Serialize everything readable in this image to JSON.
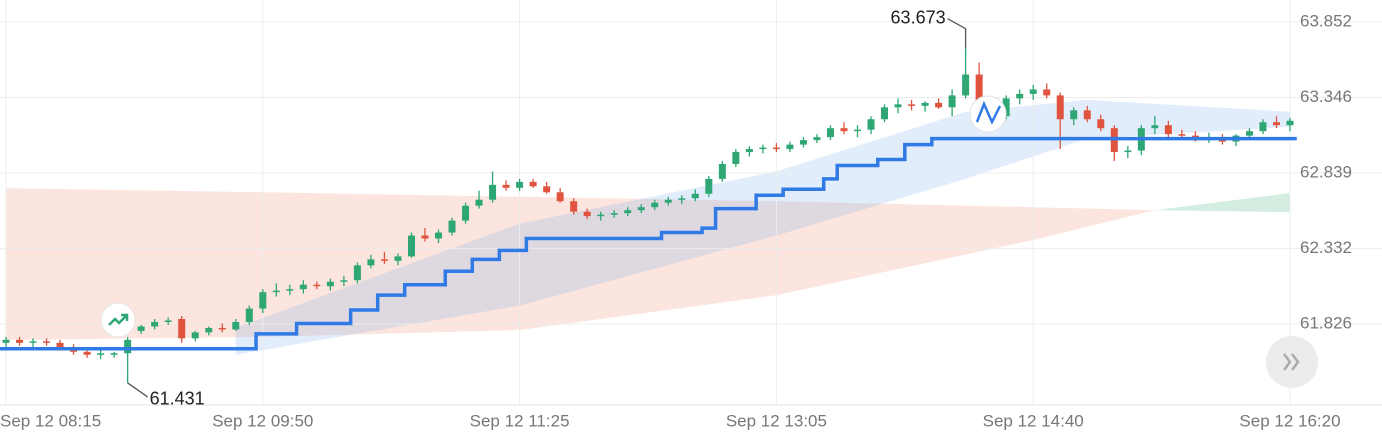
{
  "chart_data": {
    "type": "candlestick",
    "ylim": [
      61.283,
      64.0
    ],
    "yticks": [
      61.826,
      62.332,
      62.839,
      63.346,
      63.852
    ],
    "xlim": [
      0,
      95
    ],
    "xticks": [
      {
        "value": 0,
        "label": "Sep 12 08:15"
      },
      {
        "value": 19,
        "label": "Sep 12 09:50"
      },
      {
        "value": 38,
        "label": "Sep 12 11:25"
      },
      {
        "value": 57,
        "label": "Sep 12 13:05"
      },
      {
        "value": 76,
        "label": "Sep 12 14:40"
      },
      {
        "value": 95,
        "label": "Sep 12 16:20"
      }
    ],
    "grid": true,
    "up_color": "#2ea774",
    "down_color": "#e0543f",
    "candles": [
      [
        61.7,
        61.74,
        61.66,
        61.72
      ],
      [
        61.72,
        61.74,
        61.68,
        61.7
      ],
      [
        61.7,
        61.73,
        61.67,
        61.71
      ],
      [
        61.71,
        61.73,
        61.68,
        61.7
      ],
      [
        61.7,
        61.72,
        61.65,
        61.66
      ],
      [
        61.66,
        61.69,
        61.62,
        61.64
      ],
      [
        61.64,
        61.66,
        61.6,
        61.62
      ],
      [
        61.62,
        61.65,
        61.59,
        61.63
      ],
      [
        61.62,
        61.64,
        61.6,
        61.63
      ],
      [
        61.63,
        61.74,
        61.431,
        61.72
      ],
      [
        61.78,
        61.82,
        61.76,
        61.81
      ],
      [
        61.81,
        61.86,
        61.79,
        61.84
      ],
      [
        61.84,
        61.87,
        61.82,
        61.85
      ],
      [
        61.86,
        61.88,
        61.7,
        61.73
      ],
      [
        61.73,
        61.78,
        61.71,
        61.77
      ],
      [
        61.77,
        61.81,
        61.75,
        61.8
      ],
      [
        61.8,
        61.83,
        61.77,
        61.79
      ],
      [
        61.79,
        61.86,
        61.78,
        61.84
      ],
      [
        61.84,
        61.95,
        61.82,
        61.93
      ],
      [
        61.93,
        62.06,
        61.9,
        62.04
      ],
      [
        62.04,
        62.1,
        62.01,
        62.05
      ],
      [
        62.05,
        62.09,
        62.02,
        62.06
      ],
      [
        62.06,
        62.12,
        62.03,
        62.09
      ],
      [
        62.09,
        62.11,
        62.06,
        62.08
      ],
      [
        62.08,
        62.13,
        62.05,
        62.11
      ],
      [
        62.11,
        62.15,
        62.08,
        62.12
      ],
      [
        62.12,
        62.24,
        62.1,
        62.22
      ],
      [
        62.22,
        62.29,
        62.2,
        62.26
      ],
      [
        62.26,
        62.31,
        62.23,
        62.25
      ],
      [
        62.25,
        62.3,
        62.22,
        62.28
      ],
      [
        62.28,
        62.44,
        62.27,
        62.42
      ],
      [
        62.42,
        62.47,
        62.38,
        62.4
      ],
      [
        62.4,
        62.46,
        62.37,
        62.44
      ],
      [
        62.44,
        62.54,
        62.42,
        62.52
      ],
      [
        62.52,
        62.64,
        62.5,
        62.62
      ],
      [
        62.62,
        62.72,
        62.6,
        62.66
      ],
      [
        62.66,
        62.85,
        62.64,
        62.76
      ],
      [
        62.76,
        62.79,
        62.72,
        62.74
      ],
      [
        62.74,
        62.8,
        62.72,
        62.78
      ],
      [
        62.78,
        62.8,
        62.74,
        62.75
      ],
      [
        62.75,
        62.78,
        62.7,
        62.71
      ],
      [
        62.71,
        62.74,
        62.64,
        62.65
      ],
      [
        62.65,
        62.67,
        62.56,
        62.58
      ],
      [
        62.58,
        62.6,
        62.53,
        62.55
      ],
      [
        62.55,
        62.58,
        62.52,
        62.56
      ],
      [
        62.56,
        62.59,
        62.54,
        62.57
      ],
      [
        62.57,
        62.61,
        62.55,
        62.59
      ],
      [
        62.59,
        62.63,
        62.57,
        62.61
      ],
      [
        62.61,
        62.66,
        62.59,
        62.64
      ],
      [
        62.64,
        62.68,
        62.62,
        62.66
      ],
      [
        62.66,
        62.69,
        62.63,
        62.67
      ],
      [
        62.67,
        62.73,
        62.65,
        62.7
      ],
      [
        62.7,
        62.82,
        62.68,
        62.8
      ],
      [
        62.8,
        62.92,
        62.78,
        62.9
      ],
      [
        62.9,
        63.0,
        62.88,
        62.98
      ],
      [
        62.98,
        63.02,
        62.95,
        63.0
      ],
      [
        63.0,
        63.03,
        62.97,
        63.01
      ],
      [
        63.01,
        63.04,
        62.98,
        63.0
      ],
      [
        63.0,
        63.05,
        62.98,
        63.03
      ],
      [
        63.03,
        63.08,
        63.01,
        63.06
      ],
      [
        63.06,
        63.1,
        63.04,
        63.08
      ],
      [
        63.08,
        63.16,
        63.06,
        63.14
      ],
      [
        63.14,
        63.18,
        63.1,
        63.12
      ],
      [
        63.12,
        63.16,
        63.08,
        63.13
      ],
      [
        63.13,
        63.22,
        63.1,
        63.2
      ],
      [
        63.2,
        63.3,
        63.18,
        63.28
      ],
      [
        63.28,
        63.34,
        63.24,
        63.3
      ],
      [
        63.3,
        63.33,
        63.26,
        63.29
      ],
      [
        63.29,
        63.32,
        63.25,
        63.31
      ],
      [
        63.31,
        63.34,
        63.27,
        63.28
      ],
      [
        63.28,
        63.4,
        63.22,
        63.36
      ],
      [
        63.36,
        63.673,
        63.34,
        63.5
      ],
      [
        63.5,
        63.58,
        63.2,
        63.24
      ],
      [
        63.24,
        63.3,
        63.18,
        63.22
      ],
      [
        63.22,
        63.36,
        63.2,
        63.34
      ],
      [
        63.34,
        63.4,
        63.3,
        63.37
      ],
      [
        63.37,
        63.43,
        63.33,
        63.4
      ],
      [
        63.4,
        63.44,
        63.34,
        63.36
      ],
      [
        63.36,
        63.38,
        63.0,
        63.2
      ],
      [
        63.2,
        63.28,
        63.16,
        63.26
      ],
      [
        63.26,
        63.29,
        63.18,
        63.2
      ],
      [
        63.2,
        63.23,
        63.12,
        63.14
      ],
      [
        63.14,
        63.16,
        62.92,
        62.98
      ],
      [
        62.98,
        63.02,
        62.94,
        62.99
      ],
      [
        62.99,
        63.16,
        62.96,
        63.14
      ],
      [
        63.14,
        63.22,
        63.1,
        63.16
      ],
      [
        63.16,
        63.19,
        63.08,
        63.1
      ],
      [
        63.1,
        63.13,
        63.06,
        63.09
      ],
      [
        63.09,
        63.12,
        63.05,
        63.07
      ],
      [
        63.07,
        63.11,
        63.04,
        63.08
      ],
      [
        63.08,
        63.1,
        63.03,
        63.05
      ],
      [
        63.05,
        63.1,
        63.02,
        63.09
      ],
      [
        63.09,
        63.14,
        63.07,
        63.12
      ],
      [
        63.12,
        63.2,
        63.1,
        63.18
      ],
      [
        63.18,
        63.22,
        63.14,
        63.16
      ],
      [
        63.16,
        63.21,
        63.12,
        63.19
      ]
    ],
    "trend_line": {
      "color": "#2f7ae5",
      "values": [
        61.66,
        61.66,
        61.66,
        61.66,
        61.66,
        61.66,
        61.66,
        61.66,
        61.66,
        61.66,
        61.66,
        61.66,
        61.66,
        61.66,
        61.66,
        61.66,
        61.66,
        61.66,
        61.66,
        61.76,
        61.76,
        61.76,
        61.83,
        61.83,
        61.83,
        61.83,
        61.92,
        61.92,
        62.02,
        62.02,
        62.09,
        62.09,
        62.09,
        62.18,
        62.18,
        62.26,
        62.26,
        62.32,
        62.32,
        62.4,
        62.4,
        62.4,
        62.4,
        62.4,
        62.4,
        62.4,
        62.4,
        62.4,
        62.4,
        62.44,
        62.44,
        62.44,
        62.47,
        62.6,
        62.6,
        62.6,
        62.69,
        62.69,
        62.73,
        62.73,
        62.73,
        62.8,
        62.89,
        62.89,
        62.89,
        62.93,
        62.93,
        63.03,
        63.03,
        63.07,
        63.07,
        63.07,
        63.07,
        63.07,
        63.07,
        63.07,
        63.07,
        63.07,
        63.07,
        63.07,
        63.07,
        63.07,
        63.07,
        63.07,
        63.07,
        63.07,
        63.07,
        63.07,
        63.07,
        63.07,
        63.07,
        63.07,
        63.07,
        63.07,
        63.07,
        63.07
      ]
    },
    "areas": [
      {
        "color": "rgba(238,150,125,0.25)",
        "x": [
          0,
          19,
          38,
          57,
          76,
          85
        ],
        "upper": [
          62.738,
          62.71,
          62.68,
          62.65,
          62.61,
          62.59
        ],
        "lower": [
          61.719,
          61.74,
          61.786,
          62.02,
          62.39,
          62.59
        ]
      },
      {
        "color": "rgba(60,175,120,0.22)",
        "x": [
          85,
          95
        ],
        "upper": [
          62.59,
          62.705
        ],
        "lower": [
          62.59,
          62.577
        ]
      },
      {
        "color": "rgba(110,165,240,0.2)",
        "x": [
          17,
          38,
          57,
          71,
          80,
          95
        ],
        "upper": [
          61.8,
          62.5,
          62.85,
          63.25,
          63.33,
          63.25
        ],
        "lower": [
          61.62,
          61.95,
          62.42,
          62.8,
          63.07,
          63.15
        ]
      }
    ]
  }
}
